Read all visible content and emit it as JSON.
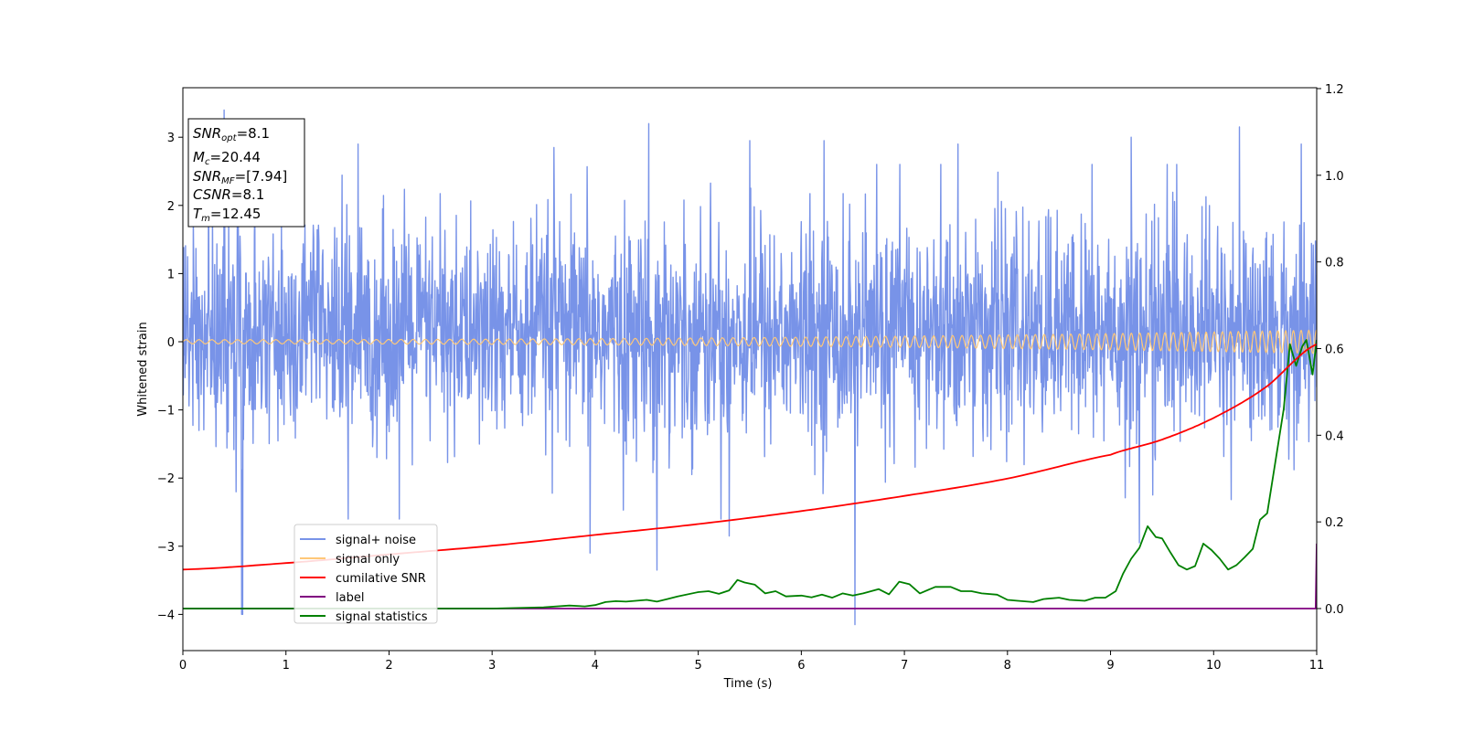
{
  "chart_data": {
    "type": "line",
    "title": "",
    "xlabel": "Time (s)",
    "ylabel": "Whitened strain",
    "xlim": [
      0,
      11
    ],
    "ylim_left": [
      -4.5,
      3.8
    ],
    "ylim_right": [
      -0.1,
      1.2
    ],
    "x_ticks": [
      0,
      1,
      2,
      3,
      4,
      5,
      6,
      7,
      8,
      9,
      10,
      11
    ],
    "x_tick_labels": [
      "0",
      "1",
      "2",
      "3",
      "4",
      "5",
      "6",
      "7",
      "8",
      "9",
      "10",
      "11"
    ],
    "y_ticks_left": [
      3,
      2,
      1,
      0,
      -1,
      -2,
      -3,
      -4
    ],
    "y_tick_labels_left": [
      "3",
      "2",
      "1",
      "0",
      "−1",
      "−2",
      "−3",
      "−4"
    ],
    "y_ticks_right": [
      1.2,
      1.0,
      0.8,
      0.6,
      0.4,
      0.2,
      0.0
    ],
    "y_tick_labels_right": [
      "1.2",
      "1.0",
      "0.8",
      "0.6",
      "0.4",
      "0.2",
      "0.0"
    ],
    "grid": false,
    "legend_position": "lower-left",
    "info_box": {
      "snr_opt": "=8.1",
      "mc": "=20.44",
      "snr_mf": "=[7.94]",
      "csnr": "=8.1",
      "tm": "=12.45"
    },
    "series": [
      {
        "name": "signal+ noise",
        "color": "#7893e8",
        "axis": "left",
        "description_stats": {
          "typical_range": [
            -1.5,
            1.8
          ],
          "max": 3.4,
          "min": -4.15
        },
        "spikes": [
          [
            0.4,
            3.4
          ],
          [
            0.57,
            -4.0
          ],
          [
            1.7,
            2.9
          ],
          [
            3.6,
            2.85
          ],
          [
            4.52,
            3.2
          ],
          [
            4.6,
            -3.35
          ],
          [
            5.5,
            2.95
          ],
          [
            6.22,
            2.95
          ],
          [
            6.52,
            -4.15
          ],
          [
            7.52,
            2.9
          ],
          [
            8.82,
            2.6
          ],
          [
            9.2,
            3.0
          ],
          [
            9.55,
            2.6
          ],
          [
            10.25,
            3.15
          ],
          [
            10.85,
            2.9
          ],
          [
            0.58,
            -4.0
          ],
          [
            2.1,
            -2.6
          ],
          [
            3.95,
            -3.1
          ],
          [
            5.3,
            -2.85
          ],
          [
            9.28,
            -2.95
          ]
        ]
      },
      {
        "name": "signal only",
        "color": "#ffc878",
        "axis": "left",
        "amplitude_start": 0.03,
        "amplitude_end": 0.17,
        "frequency_start_hz": 8,
        "frequency_end_hz": 13.5
      },
      {
        "name": "cumilative SNR",
        "color": "#ff0000",
        "axis": "right",
        "x": [
          0,
          1,
          2,
          3,
          4,
          5,
          6,
          7,
          8,
          9,
          9.5,
          10,
          10.5,
          11
        ],
        "values": [
          0.09,
          0.105,
          0.125,
          0.145,
          0.17,
          0.195,
          0.225,
          0.26,
          0.3,
          0.355,
          0.39,
          0.44,
          0.51,
          0.61
        ]
      },
      {
        "name": "label",
        "color": "#800080",
        "axis": "right",
        "x": [
          0,
          10.99,
          11
        ],
        "values": [
          0,
          0,
          0.15
        ]
      },
      {
        "name": "signal statistics",
        "color": "#008000",
        "axis": "right",
        "x": [
          0,
          1,
          2,
          3,
          3.5,
          3.75,
          3.9,
          4.0,
          4.1,
          4.2,
          4.3,
          4.5,
          4.6,
          4.7,
          4.8,
          5.0,
          5.1,
          5.2,
          5.3,
          5.38,
          5.45,
          5.55,
          5.65,
          5.75,
          5.85,
          6.0,
          6.1,
          6.2,
          6.3,
          6.4,
          6.5,
          6.6,
          6.75,
          6.85,
          6.95,
          7.05,
          7.15,
          7.3,
          7.45,
          7.55,
          7.65,
          7.75,
          7.9,
          8.0,
          8.1,
          8.25,
          8.35,
          8.5,
          8.6,
          8.75,
          8.85,
          8.95,
          9.05,
          9.12,
          9.2,
          9.28,
          9.36,
          9.44,
          9.5,
          9.58,
          9.66,
          9.74,
          9.82,
          9.9,
          9.98,
          10.06,
          10.14,
          10.22,
          10.3,
          10.38,
          10.45,
          10.52,
          10.6,
          10.68,
          10.74,
          10.8,
          10.86,
          10.9,
          10.96,
          11.0
        ],
        "values": [
          0.0,
          0.0,
          0.0,
          0.0,
          0.003,
          0.007,
          0.005,
          0.008,
          0.015,
          0.017,
          0.016,
          0.02,
          0.016,
          0.022,
          0.028,
          0.038,
          0.04,
          0.034,
          0.042,
          0.066,
          0.06,
          0.055,
          0.035,
          0.04,
          0.028,
          0.03,
          0.026,
          0.032,
          0.025,
          0.035,
          0.03,
          0.035,
          0.045,
          0.033,
          0.062,
          0.056,
          0.035,
          0.05,
          0.05,
          0.04,
          0.04,
          0.035,
          0.032,
          0.02,
          0.018,
          0.015,
          0.022,
          0.025,
          0.02,
          0.018,
          0.025,
          0.025,
          0.04,
          0.08,
          0.115,
          0.14,
          0.19,
          0.165,
          0.162,
          0.13,
          0.1,
          0.09,
          0.098,
          0.15,
          0.135,
          0.115,
          0.09,
          0.1,
          0.118,
          0.138,
          0.205,
          0.22,
          0.34,
          0.46,
          0.61,
          0.56,
          0.605,
          0.62,
          0.54,
          0.62
        ]
      }
    ]
  }
}
